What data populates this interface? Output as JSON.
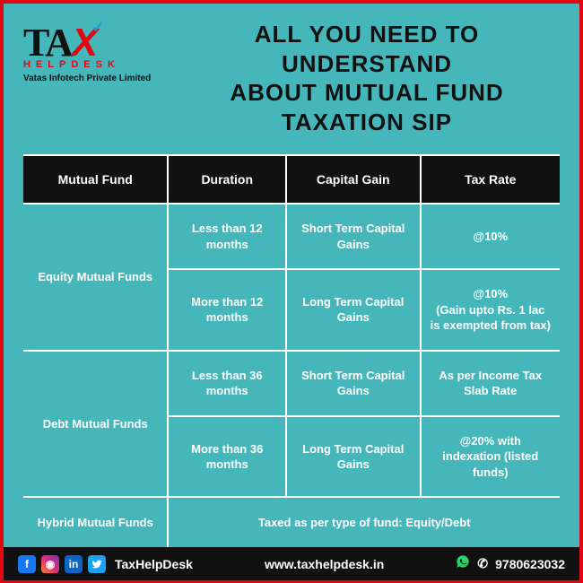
{
  "logo": {
    "word_part1": "TA",
    "word_part2": "X",
    "sub": "HELPDESK",
    "company": "Vatas Infotech Private Limited"
  },
  "title_line1": "ALL YOU NEED TO UNDERSTAND",
  "title_line2": "ABOUT MUTUAL FUND TAXATION SIP",
  "table": {
    "columns": [
      "Mutual Fund",
      "Duration",
      "Capital Gain",
      "Tax Rate"
    ],
    "header_bg": "#111111",
    "header_fg": "#ffffff",
    "cell_fg": "#ffffff",
    "border_color": "#ffffff",
    "body_bg": "#45b6ba",
    "rows": [
      {
        "fund": "Equity Mutual Funds",
        "cells": [
          [
            "Less than 12 months",
            "Short Term Capital Gains",
            "@10%"
          ],
          [
            "More than 12 months",
            "Long Term Capital Gains",
            "@10%\n(Gain upto Rs. 1 lac is exempted from tax)"
          ]
        ]
      },
      {
        "fund": "Debt Mutual Funds",
        "cells": [
          [
            "Less than 36 months",
            "Short Term Capital Gains",
            "As per Income Tax Slab Rate"
          ],
          [
            "More than 36 months",
            "Long Term Capital Gains",
            "@20% with indexation (listed funds)"
          ]
        ]
      },
      {
        "fund": "Hybrid Mutual Funds",
        "span": "Taxed as per type of fund: Equity/Debt"
      }
    ],
    "col_widths": [
      "27%",
      "22%",
      "25%",
      "26%"
    ],
    "fontsize_header": 14,
    "fontsize_cell": 13
  },
  "footer": {
    "handle": "TaxHelpDesk",
    "site": "www.taxhelpdesk.in",
    "phone": "9780623032",
    "bg": "#111111",
    "fg": "#ffffff"
  },
  "colors": {
    "frame_border": "#e30613",
    "background": "#45b6ba",
    "logo_red": "#e30613",
    "logo_black": "#111111",
    "check_blue": "#0aa3e0"
  }
}
